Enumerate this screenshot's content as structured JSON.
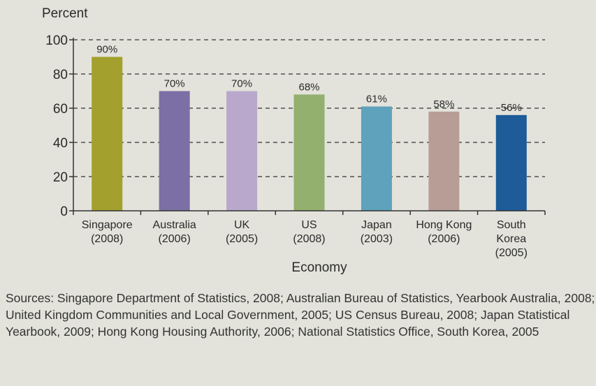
{
  "chart_data": {
    "type": "bar",
    "title": "",
    "ylabel": "Percent",
    "xlabel": "Economy",
    "ylim": [
      0,
      100
    ],
    "yticks": [
      0,
      20,
      40,
      60,
      80,
      100
    ],
    "grid": true,
    "categories": [
      [
        "Singapore",
        "(2008)"
      ],
      [
        "Australia",
        "(2006)"
      ],
      [
        "UK",
        "(2005)"
      ],
      [
        "US",
        "(2008)"
      ],
      [
        "Japan",
        "(2003)"
      ],
      [
        "Hong Kong",
        "(2006)"
      ],
      [
        "South",
        "Korea",
        "(2005)"
      ]
    ],
    "values": [
      90,
      70,
      70,
      68,
      61,
      58,
      56
    ],
    "data_labels": [
      "90%",
      "70%",
      "70%",
      "68%",
      "61%",
      "58%",
      "56%"
    ],
    "colors": [
      "#a3a02e",
      "#7b6fa6",
      "#b9a8cc",
      "#93b06e",
      "#5fa2bc",
      "#b89d96",
      "#1d5b99"
    ]
  },
  "sources": "Sources: Singapore Department of Statistics, 2008; Australian Bureau of Statistics, Yearbook Australia, 2008; United Kingdom Communities and Local Government, 2005; US Census Bureau, 2008; Japan Statistical Yearbook, 2009; Hong Kong Housing Authority, 2006; National Statistics Office, South Korea, 2005"
}
